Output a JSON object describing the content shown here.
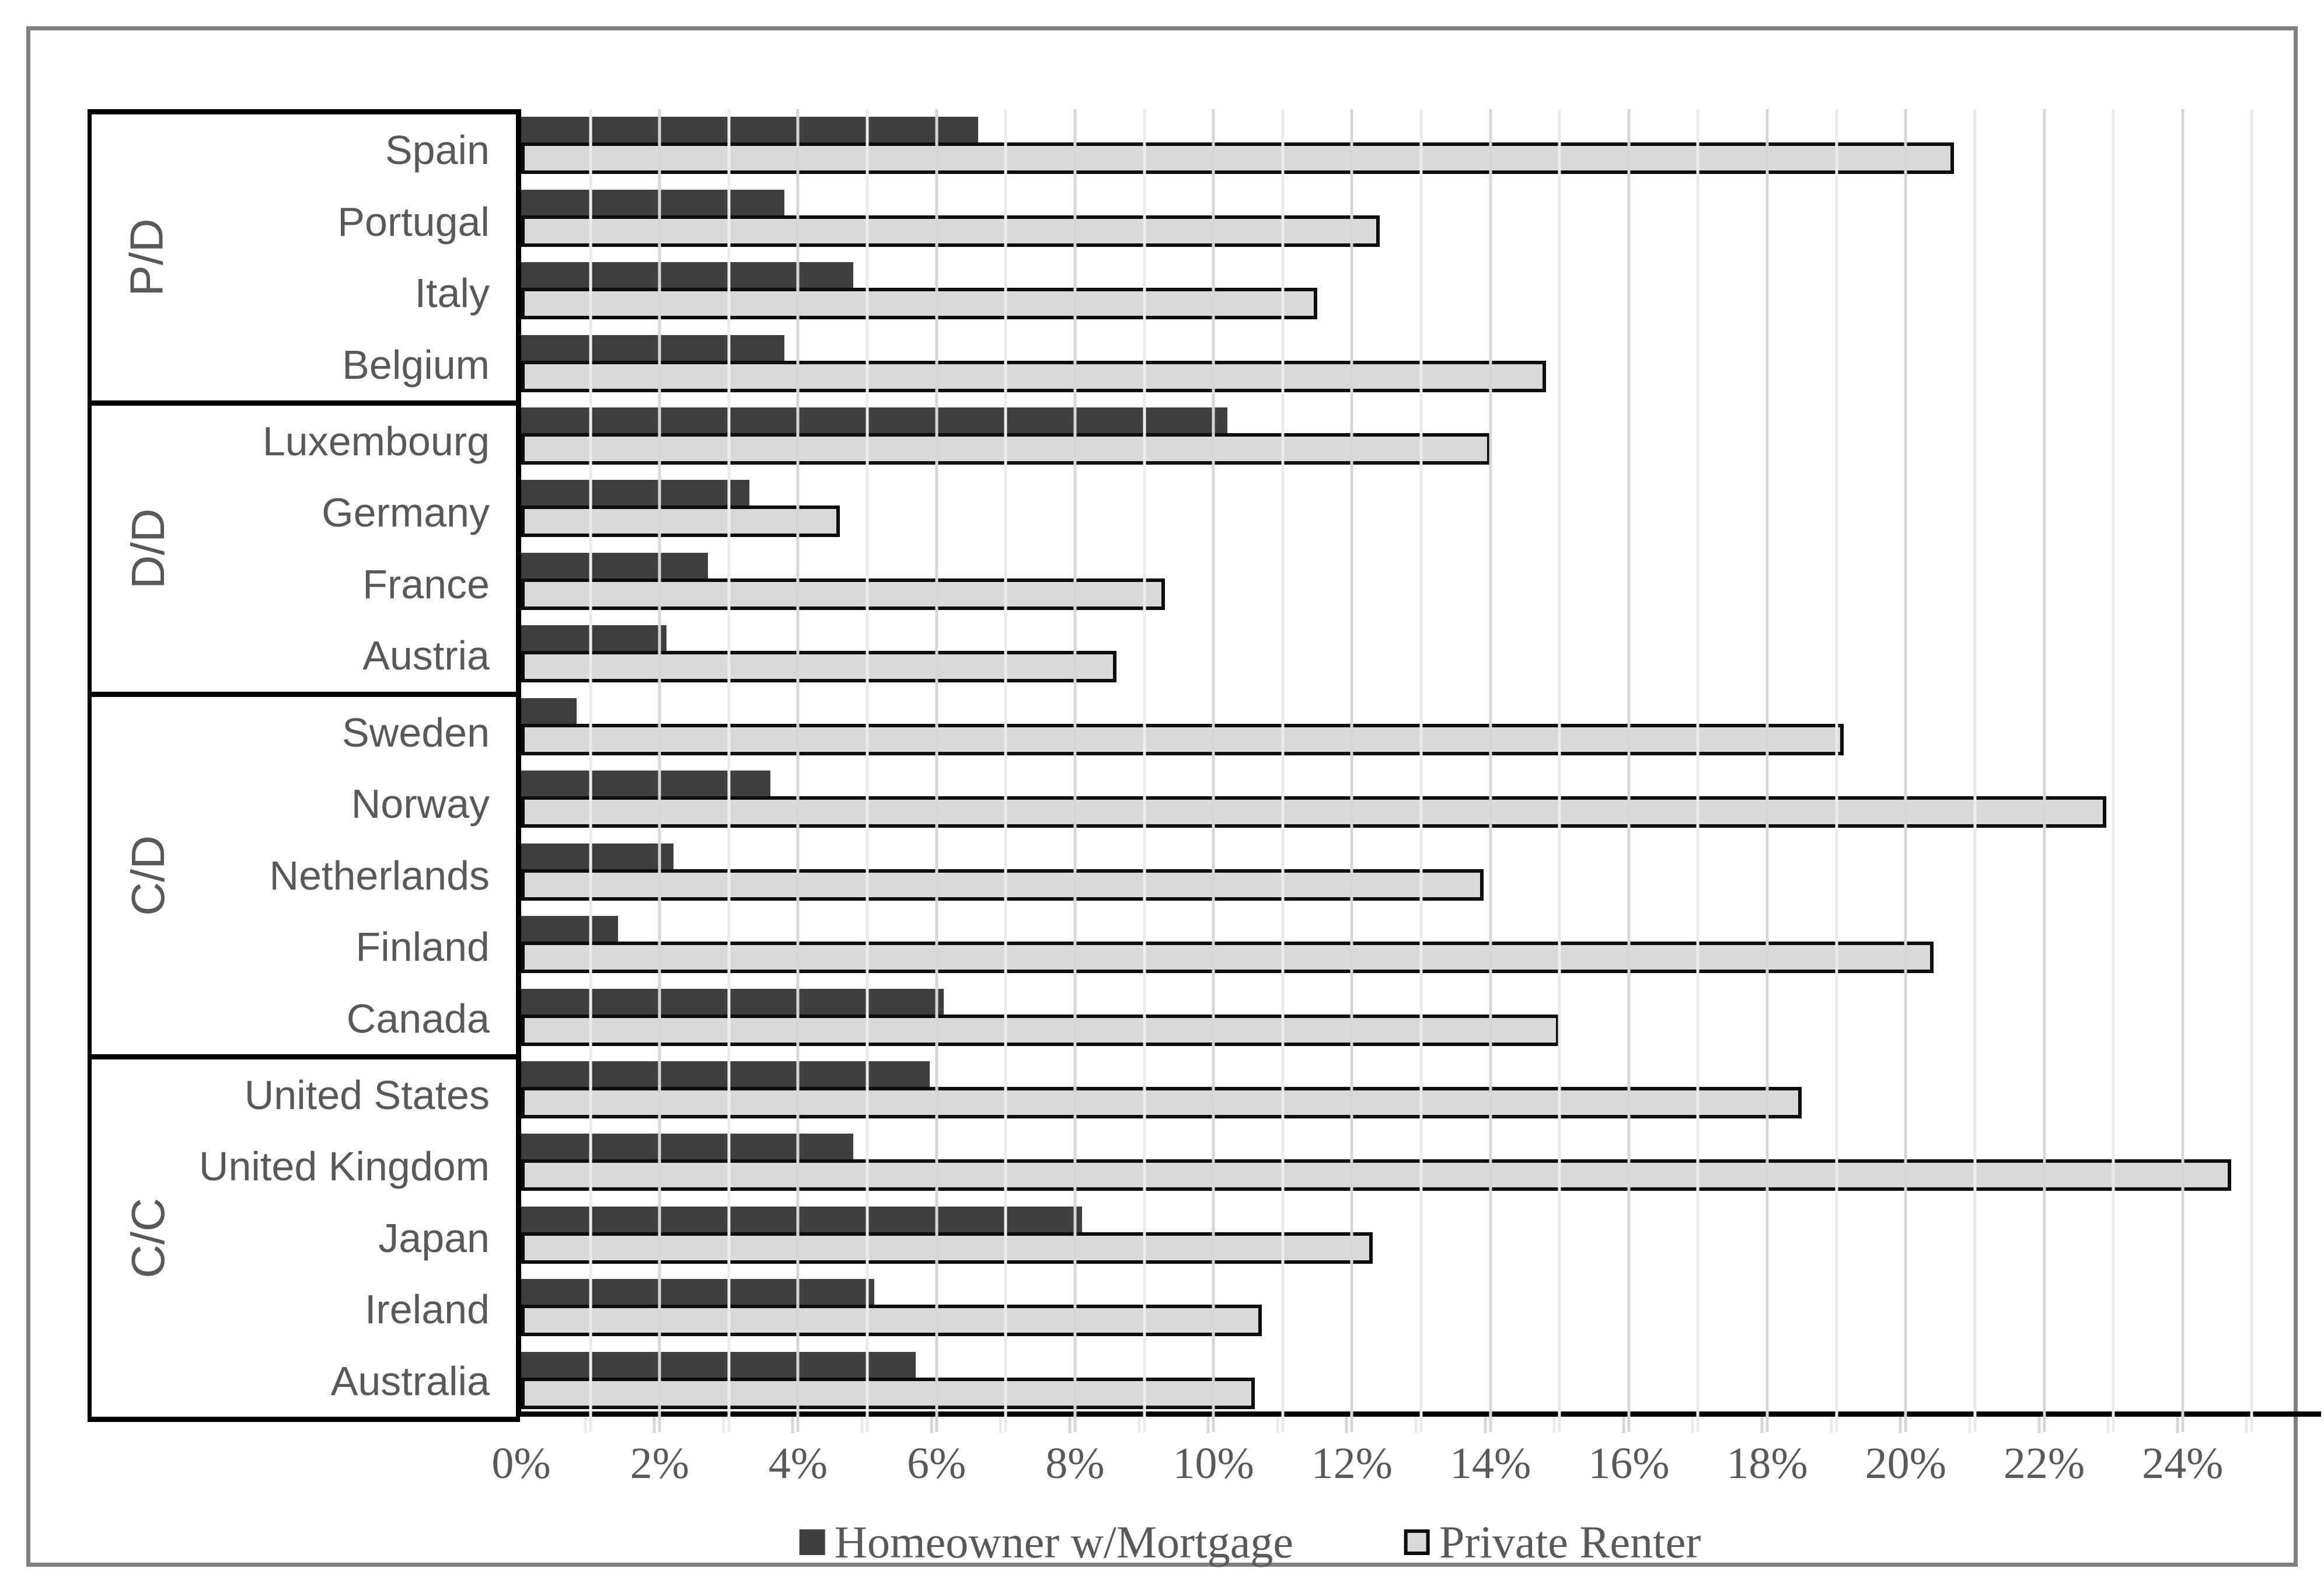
{
  "figure": {
    "background": "#ffffff",
    "border_color": "#7f7f7f"
  },
  "colors": {
    "homeowner_bar": "#3f3f3f",
    "renter_bar_fill": "#d9d9d9",
    "renter_bar_border": "#0d0d0d",
    "gridline_major": "#d6d6d6",
    "gridline_minor": "#ebebeb",
    "text": "#595959",
    "axis_line": "#000000"
  },
  "legend": {
    "position": "bottom",
    "items": [
      {
        "label": "Homeowner w/Mortgage",
        "swatch": "dark"
      },
      {
        "label": "Private Renter",
        "swatch": "light"
      }
    ]
  },
  "x_axis": {
    "min": 0,
    "max": 26,
    "gridline_step": 1,
    "major_step": 2,
    "tick_values": [
      0,
      2,
      4,
      6,
      8,
      10,
      12,
      14,
      16,
      18,
      20,
      22,
      24
    ],
    "tick_labels": [
      "0%",
      "2%",
      "4%",
      "6%",
      "8%",
      "10%",
      "12%",
      "14%",
      "16%",
      "18%",
      "20%",
      "22%",
      "24%"
    ]
  },
  "chart_data": {
    "type": "bar",
    "orientation": "horizontal",
    "title": "",
    "xlabel": "",
    "ylabel": "",
    "xlim": [
      0,
      26
    ],
    "grid": "vertical gridlines every 1%, labels every 2%",
    "legend_position": "bottom",
    "series_names": [
      "Homeowner w/Mortgage",
      "Private Renter"
    ],
    "groups": [
      {
        "label": "P/D",
        "countries": [
          {
            "name": "Spain",
            "homeowner": 6.6,
            "renter": 20.7
          },
          {
            "name": "Portugal",
            "homeowner": 3.8,
            "renter": 12.4
          },
          {
            "name": "Italy",
            "homeowner": 4.8,
            "renter": 11.5
          },
          {
            "name": "Belgium",
            "homeowner": 3.8,
            "renter": 14.8
          }
        ]
      },
      {
        "label": "D/D",
        "countries": [
          {
            "name": "Luxembourg",
            "homeowner": 10.2,
            "renter": 14.0
          },
          {
            "name": "Germany",
            "homeowner": 3.3,
            "renter": 4.6
          },
          {
            "name": "France",
            "homeowner": 2.7,
            "renter": 9.3
          },
          {
            "name": "Austria",
            "homeowner": 2.1,
            "renter": 8.6
          }
        ]
      },
      {
        "label": "C/D",
        "countries": [
          {
            "name": "Sweden",
            "homeowner": 0.8,
            "renter": 19.1
          },
          {
            "name": "Norway",
            "homeowner": 3.6,
            "renter": 22.9
          },
          {
            "name": "Netherlands",
            "homeowner": 2.2,
            "renter": 13.9
          },
          {
            "name": "Finland",
            "homeowner": 1.4,
            "renter": 20.4
          },
          {
            "name": "Canada",
            "homeowner": 6.1,
            "renter": 15.0
          }
        ]
      },
      {
        "label": "C/C",
        "countries": [
          {
            "name": "United States",
            "homeowner": 5.9,
            "renter": 18.5
          },
          {
            "name": "United Kingdom",
            "homeowner": 4.8,
            "renter": 24.7
          },
          {
            "name": "Japan",
            "homeowner": 8.1,
            "renter": 12.3
          },
          {
            "name": "Ireland",
            "homeowner": 5.1,
            "renter": 10.7
          },
          {
            "name": "Australia",
            "homeowner": 5.7,
            "renter": 10.6
          }
        ]
      }
    ]
  }
}
